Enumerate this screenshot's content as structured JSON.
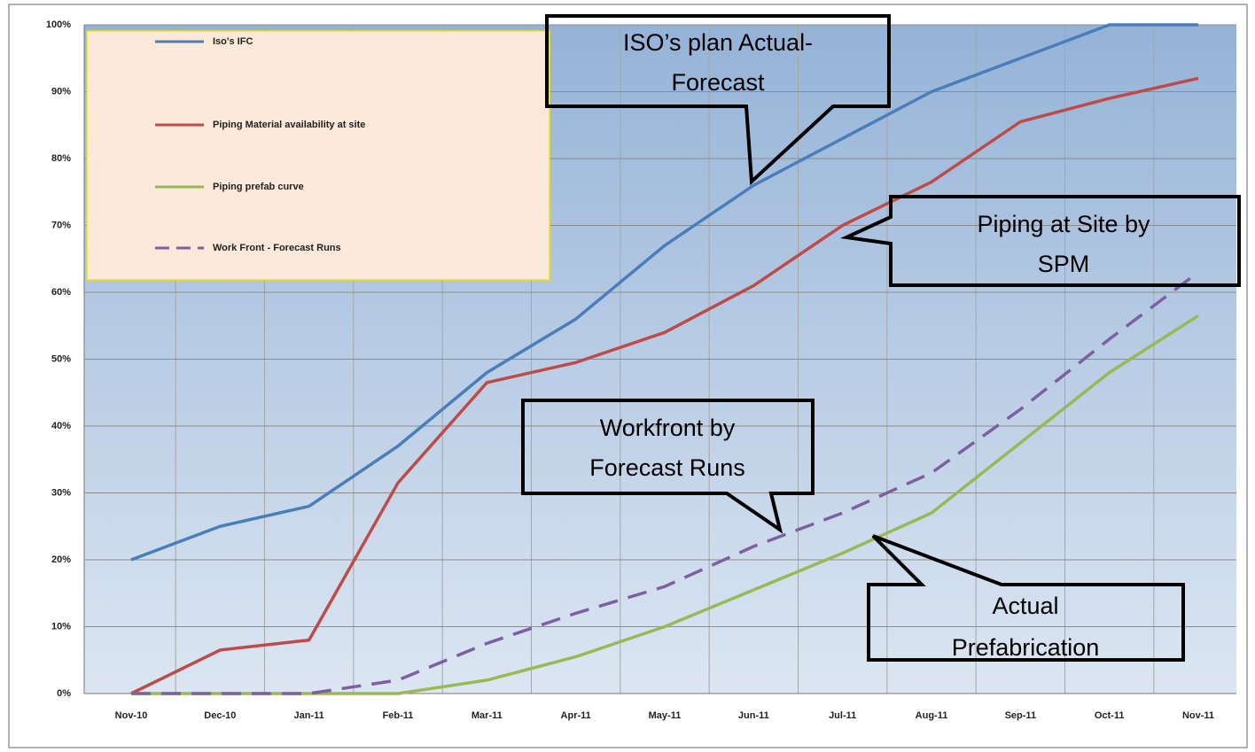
{
  "chart_data": {
    "type": "line",
    "categories": [
      "Nov-10",
      "Dec-10",
      "Jan-11",
      "Feb-11",
      "Mar-11",
      "Apr-11",
      "May-11",
      "Jun-11",
      "Jul-11",
      "Aug-11",
      "Sep-11",
      "Oct-11",
      "Nov-11"
    ],
    "series": [
      {
        "name": "Iso's IFC",
        "color": "#4a7ebb",
        "values": [
          20,
          25,
          28,
          37,
          48,
          56,
          67,
          76,
          83,
          90,
          95,
          100,
          100
        ]
      },
      {
        "name": "Piping Material availability at site",
        "color": "#be4b48",
        "values": [
          0,
          6.5,
          8,
          31.5,
          46.5,
          49.5,
          54,
          61,
          70,
          76.5,
          85.5,
          89,
          92
        ]
      },
      {
        "name": "Piping prefab curve",
        "color": "#98b954",
        "values": [
          0,
          0,
          0,
          0,
          2,
          5.5,
          10,
          15.5,
          21,
          27,
          37.5,
          48,
          56.5
        ]
      },
      {
        "name": "Work Front - Forecast Runs",
        "color": "#7d60a0",
        "dashed": true,
        "values": [
          0,
          0,
          0,
          2,
          7.5,
          12,
          16,
          22,
          27,
          33,
          42.5,
          53,
          63
        ]
      }
    ],
    "ylim": [
      0,
      100
    ],
    "yticks": [
      {
        "value": 0,
        "label": "0%"
      },
      {
        "value": 10,
        "label": "10%"
      },
      {
        "value": 20,
        "label": "20%"
      },
      {
        "value": 30,
        "label": "30%"
      },
      {
        "value": 40,
        "label": "40%"
      },
      {
        "value": 50,
        "label": "50%"
      },
      {
        "value": 60,
        "label": "60%"
      },
      {
        "value": 70,
        "label": "70%"
      },
      {
        "value": 80,
        "label": "80%"
      },
      {
        "value": 90,
        "label": "90%"
      },
      {
        "value": 100,
        "label": "100%"
      }
    ],
    "grid": true,
    "legend": "upper left",
    "annotations": [
      {
        "lines": [
          "ISO’s plan Actual-",
          "Forecast"
        ]
      },
      {
        "lines": [
          "Piping at Site by",
          "SPM"
        ]
      },
      {
        "lines": [
          "Workfront by",
          "Forecast Runs"
        ]
      },
      {
        "lines": [
          "Actual",
          "Prefabrication"
        ]
      }
    ]
  }
}
